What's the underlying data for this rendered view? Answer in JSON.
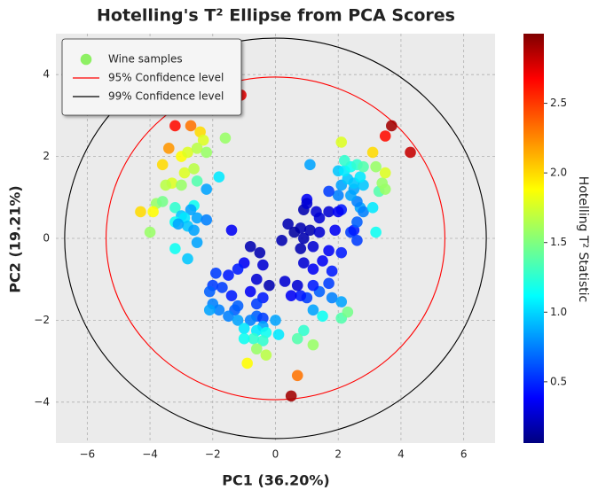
{
  "chart_data": {
    "type": "scatter",
    "title": "Hotelling's T² Ellipse from PCA Scores",
    "x_label": "PC1 (36.20%)",
    "y_label": "PC2 (19.21%)",
    "xlim": [
      -7,
      7
    ],
    "ylim": [
      -5,
      5
    ],
    "xticks": [
      {
        "value": -6,
        "label": "−6"
      },
      {
        "value": -4,
        "label": "−4"
      },
      {
        "value": -2,
        "label": "−2"
      },
      0,
      2,
      4,
      6
    ],
    "yticks": [
      {
        "value": -4,
        "label": "−4"
      },
      {
        "value": -2,
        "label": "−2"
      },
      0,
      2,
      4
    ],
    "grid": true,
    "colormap": "jet",
    "legend_position": "upper left",
    "series": [
      {
        "name": "Wine samples",
        "color": "#8ef064",
        "x": [
          -1.1,
          -3.2,
          -2.7,
          -2.4,
          -2.3,
          -1.6,
          -3.4,
          -3.0,
          -2.8,
          -2.5,
          -2.2,
          -3.6,
          -2.9,
          -2.6,
          -3.3,
          -3.5,
          -3.0,
          -2.5,
          -1.8,
          -2.2,
          -3.8,
          -3.6,
          -3.2,
          -2.6,
          -4.3,
          -3.9,
          -3.0,
          -2.7,
          -3.2,
          -2.9,
          -2.5,
          -2.2,
          -2.8,
          -3.1,
          -4.0,
          -2.6,
          -1.4,
          -3.2,
          -2.5,
          -2.8,
          -0.8,
          -0.5,
          -1.0,
          -0.4,
          -1.2,
          -1.9,
          -1.5,
          -0.6,
          -2.0,
          -1.7,
          -0.2,
          0.3,
          -0.8,
          -2.1,
          -1.4,
          -0.4,
          -1.2,
          -2.0,
          -1.8,
          -1.3,
          -0.6,
          -1.5,
          -2.1,
          -1.2,
          -0.6,
          -0.4,
          -0.8,
          0.0,
          -0.4,
          -1.0,
          -0.6,
          -0.3,
          0.1,
          -0.7,
          -1.0,
          -0.4,
          -0.6,
          -0.3,
          -0.9,
          0.7,
          0.5,
          0.9,
          0.7,
          1.2,
          1.5,
          1.2,
          2.1,
          2.3,
          1.0,
          0.8,
          1.4,
          0.5,
          0.7,
          1.2,
          1.8,
          2.1,
          1.7,
          1.2,
          1.8,
          0.9,
          1.5,
          1.7,
          2.1,
          1.2,
          0.4,
          0.8,
          0.6,
          1.1,
          1.4,
          1.9,
          2.4,
          2.5,
          2.6,
          0.9,
          0.2,
          0.8,
          1.4,
          0.9,
          1.3,
          1.7,
          2.1,
          2.0,
          1.0,
          1.0,
          3.2,
          2.6,
          2.7,
          2.8,
          3.1,
          2.6,
          2.4,
          2.0,
          1.7,
          2.5,
          2.8,
          3.3,
          2.1,
          2.3,
          2.5,
          2.7,
          3.4,
          3.5,
          2.0,
          2.2,
          2.4,
          2.2,
          2.6,
          2.8,
          3.2,
          3.5,
          1.1,
          2.1,
          3.1,
          3.5,
          3.7,
          4.3
        ],
        "values": [
          3.5,
          2.75,
          2.75,
          2.6,
          2.4,
          2.45,
          2.2,
          2.0,
          2.1,
          2.2,
          2.1,
          1.8,
          1.6,
          1.7,
          1.35,
          1.3,
          1.3,
          1.4,
          1.5,
          1.2,
          0.85,
          0.9,
          0.75,
          0.8,
          0.65,
          0.65,
          0.55,
          0.7,
          0.4,
          0.5,
          0.5,
          0.45,
          0.3,
          0.35,
          0.15,
          0.2,
          0.2,
          -0.25,
          -0.1,
          -0.5,
          -0.2,
          -0.35,
          -0.6,
          -0.65,
          -0.75,
          -0.85,
          -0.9,
          -1.0,
          -1.15,
          -1.2,
          -1.15,
          -1.05,
          -1.3,
          -1.3,
          -1.4,
          -1.45,
          -1.65,
          -1.6,
          -1.75,
          -1.75,
          -1.6,
          -1.9,
          -1.75,
          -2.0,
          -1.9,
          -1.95,
          -2.0,
          -2.0,
          -2.15,
          -2.2,
          -2.25,
          -2.3,
          -2.35,
          -2.45,
          -2.45,
          -2.5,
          -2.7,
          -2.85,
          -3.05,
          -3.35,
          -3.85,
          -2.25,
          -2.45,
          -2.6,
          -1.9,
          -1.75,
          -1.95,
          -1.8,
          -1.45,
          -1.4,
          -1.3,
          -1.4,
          -1.15,
          -1.15,
          -1.45,
          -1.55,
          -1.1,
          -0.75,
          -0.8,
          -0.6,
          -0.55,
          -0.3,
          -0.35,
          -0.2,
          0.35,
          0.25,
          0.15,
          0.2,
          0.15,
          0.2,
          0.15,
          0.2,
          -0.05,
          0.0,
          -0.05,
          -0.25,
          0.5,
          0.7,
          0.65,
          0.65,
          0.7,
          0.65,
          0.95,
          0.85,
          0.15,
          0.4,
          0.75,
          0.65,
          0.75,
          0.9,
          1.05,
          1.05,
          1.15,
          1.2,
          1.3,
          1.15,
          1.3,
          1.45,
          1.35,
          1.5,
          1.35,
          1.2,
          1.65,
          1.65,
          1.75,
          1.9,
          1.8,
          1.75,
          1.75,
          1.6,
          1.8,
          2.35,
          2.1,
          2.5,
          2.75,
          2.1
        ],
        "color_values": [
          2.7,
          2.6,
          2.3,
          2.0,
          1.8,
          1.6,
          2.2,
          1.9,
          1.8,
          1.7,
          1.6,
          2.0,
          1.8,
          1.7,
          1.8,
          1.7,
          1.6,
          1.4,
          1.1,
          0.9,
          1.6,
          1.5,
          1.3,
          1.2,
          2.0,
          1.9,
          1.0,
          0.9,
          1.2,
          1.1,
          0.9,
          0.8,
          1.0,
          0.9,
          1.6,
          0.9,
          0.4,
          1.2,
          0.9,
          1.0,
          0.2,
          0.2,
          0.4,
          0.3,
          0.5,
          0.6,
          0.5,
          0.3,
          0.6,
          0.6,
          0.2,
          0.3,
          0.4,
          0.7,
          0.5,
          0.5,
          0.7,
          0.8,
          0.8,
          0.7,
          0.6,
          0.8,
          0.9,
          0.9,
          0.7,
          0.6,
          0.8,
          0.9,
          0.9,
          1.1,
          1.1,
          1.2,
          1.1,
          1.3,
          1.2,
          1.3,
          1.6,
          1.7,
          1.9,
          2.3,
          2.9,
          1.3,
          1.4,
          1.6,
          1.2,
          0.9,
          1.4,
          1.5,
          0.6,
          0.5,
          0.7,
          0.4,
          0.3,
          0.5,
          0.8,
          0.9,
          0.6,
          0.4,
          0.5,
          0.3,
          0.4,
          0.4,
          0.5,
          0.3,
          0.2,
          0.2,
          0.15,
          0.2,
          0.3,
          0.4,
          0.6,
          0.5,
          0.6,
          0.2,
          0.2,
          0.2,
          0.3,
          0.2,
          0.3,
          0.3,
          0.5,
          0.4,
          0.4,
          0.3,
          1.2,
          0.7,
          0.9,
          0.8,
          1.1,
          0.8,
          0.9,
          0.8,
          0.6,
          0.9,
          1.0,
          1.4,
          0.9,
          1.0,
          1.0,
          1.1,
          1.6,
          1.6,
          1.0,
          1.1,
          1.2,
          1.3,
          1.3,
          1.4,
          1.6,
          1.8,
          0.9,
          1.8,
          2.0,
          2.6,
          2.9,
          2.8
        ]
      }
    ],
    "ellipses": [
      {
        "name": "95% Confidence level",
        "color": "#ff0000",
        "cx": 0,
        "cy": 0,
        "rx": 5.4,
        "ry": 3.94
      },
      {
        "name": "99% Confidence level",
        "color": "#000000",
        "cx": 0,
        "cy": 0,
        "rx": 6.72,
        "ry": 4.89
      }
    ],
    "colorbar": {
      "label": "Hotelling T² Statistic",
      "lim": [
        0.06,
        3.0
      ],
      "ticks": [
        0.5,
        {
          "value": 1.0,
          "label": "1.0"
        },
        1.5,
        {
          "value": 2.0,
          "label": "2.0"
        },
        2.5
      ]
    }
  }
}
